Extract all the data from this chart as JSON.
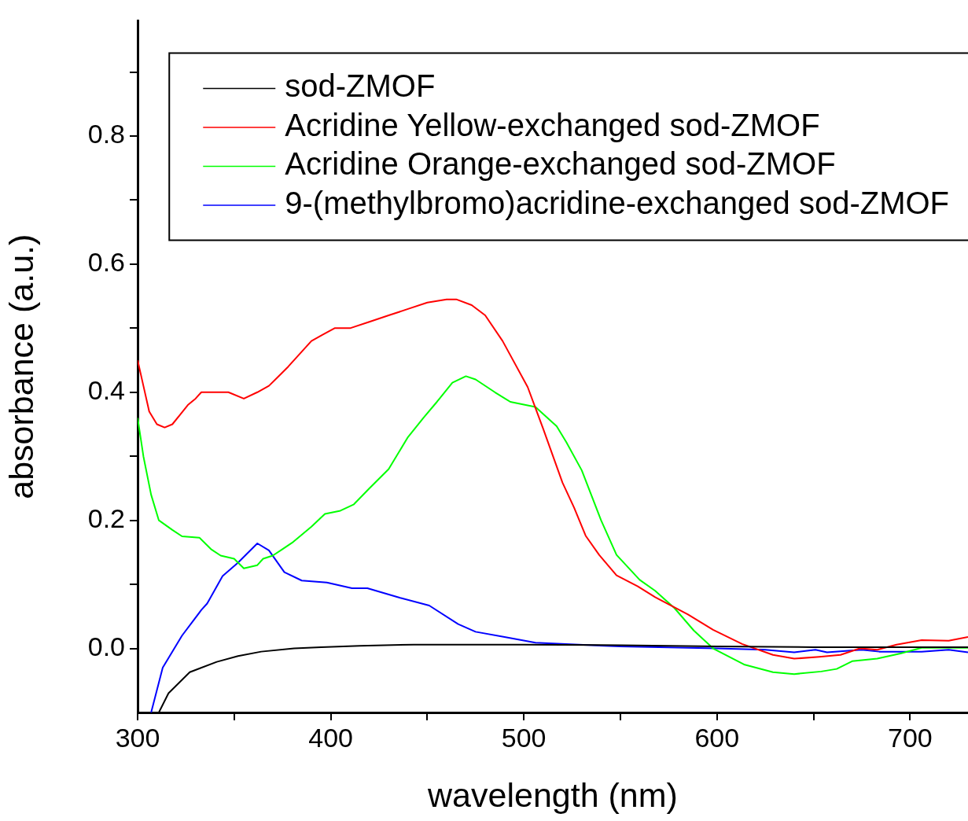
{
  "chart_data": {
    "type": "line",
    "xlabel": "wavelength (nm)",
    "ylabel": "absorbance (a.u.)",
    "xlim": [
      300,
      730
    ],
    "ylim": [
      -0.1,
      0.98
    ],
    "xticks": [
      300,
      {
        "value": 350,
        "label": null
      },
      400,
      {
        "value": 450,
        "label": null
      },
      500,
      {
        "value": 550,
        "label": null
      },
      600,
      {
        "value": 650,
        "label": null
      },
      700
    ],
    "yticks": [
      {
        "value": 0,
        "label": "0.0"
      },
      {
        "value": 0.1,
        "label": null
      },
      0.2,
      {
        "value": 0.3,
        "label": null
      },
      0.4,
      {
        "value": 0.5,
        "label": null
      },
      0.6,
      {
        "value": 0.7,
        "label": null
      },
      0.8,
      {
        "value": 0.9,
        "label": null
      }
    ],
    "grid": false,
    "legend": "top right",
    "marker": "none",
    "line_style": "solid",
    "series": [
      {
        "name": "sod-ZMOF",
        "color": "#000000",
        "x": [
          311,
          316,
          327,
          341,
          352,
          364,
          381,
          395,
          415,
          443,
          470,
          500,
          550,
          600,
          650,
          700,
          730
        ],
        "values": [
          -0.1,
          -0.07,
          -0.037,
          -0.021,
          -0.012,
          -0.005,
          0,
          0.002,
          0.004,
          0.006,
          0.006,
          0.006,
          0.005,
          0.003,
          0.002,
          0.002,
          0.002
        ]
      },
      {
        "name": "Acridine Yellow-exchanged sod-ZMOF",
        "color": "#ff0000",
        "x": [
          300,
          303,
          306,
          310,
          314,
          318,
          322,
          326,
          330,
          333,
          340,
          347,
          355,
          362,
          368,
          373,
          378,
          384,
          390,
          396,
          402,
          410,
          420,
          430,
          440,
          450,
          460,
          465,
          473,
          480,
          489,
          502,
          510,
          520,
          526,
          532,
          539,
          548,
          559,
          568,
          585,
          598,
          613,
          629,
          640,
          653,
          664,
          674,
          683,
          693,
          706,
          720,
          730
        ],
        "values": [
          0.45,
          0.41,
          0.37,
          0.35,
          0.345,
          0.35,
          0.365,
          0.38,
          0.39,
          0.4,
          0.4,
          0.4,
          0.39,
          0.4,
          0.41,
          0.425,
          0.44,
          0.46,
          0.48,
          0.49,
          0.5,
          0.5,
          0.51,
          0.52,
          0.53,
          0.54,
          0.545,
          0.545,
          0.536,
          0.52,
          0.48,
          0.408,
          0.343,
          0.259,
          0.22,
          0.176,
          0.146,
          0.114,
          0.097,
          0.08,
          0.053,
          0.029,
          0.007,
          -0.01,
          -0.016,
          -0.013,
          -0.01,
          0,
          -0.002,
          0.006,
          0.013,
          0.012,
          0.018
        ]
      },
      {
        "name": "Acridine Orange-exchanged sod-ZMOF",
        "color": "#00ff00",
        "x": [
          300,
          303,
          307,
          311,
          318,
          323,
          332,
          338,
          343,
          350,
          355,
          362,
          365,
          370,
          375,
          380,
          390,
          397,
          405,
          412,
          420,
          430,
          440,
          448,
          455,
          463,
          470,
          475,
          485,
          493,
          506,
          517,
          522,
          530,
          540,
          548,
          560,
          568,
          578,
          588,
          598,
          614,
          629,
          640,
          654,
          662,
          670,
          683,
          695,
          706,
          720,
          730
        ],
        "values": [
          0.36,
          0.3,
          0.24,
          0.2,
          0.185,
          0.175,
          0.173,
          0.155,
          0.145,
          0.14,
          0.125,
          0.13,
          0.14,
          0.145,
          0.155,
          0.165,
          0.19,
          0.21,
          0.215,
          0.225,
          0.25,
          0.28,
          0.33,
          0.36,
          0.385,
          0.415,
          0.425,
          0.42,
          0.4,
          0.385,
          0.377,
          0.347,
          0.322,
          0.278,
          0.2,
          0.146,
          0.107,
          0.09,
          0.063,
          0.028,
          0,
          -0.025,
          -0.037,
          -0.04,
          -0.036,
          -0.032,
          -0.02,
          -0.016,
          -0.008,
          0.001,
          0.001,
          0.001
        ]
      },
      {
        "name": "9-(methylbromo)acridine-exchanged sod-ZMOF",
        "color": "#0000ff",
        "x": [
          307,
          313,
          323,
          333,
          336,
          344,
          352,
          362,
          368,
          376,
          385,
          398,
          411,
          419,
          436,
          451,
          466,
          475,
          490,
          506,
          550,
          600,
          625,
          640,
          651,
          657,
          675,
          684,
          706,
          720,
          730
        ],
        "values": [
          -0.1,
          -0.03,
          0.02,
          0.06,
          0.07,
          0.113,
          0.134,
          0.164,
          0.153,
          0.119,
          0.106,
          0.103,
          0.094,
          0.094,
          0.079,
          0.067,
          0.038,
          0.026,
          0.018,
          0.009,
          0.003,
          0,
          -0.002,
          -0.006,
          -0.002,
          -0.006,
          -0.002,
          -0.005,
          -0.005,
          -0.002,
          -0.006
        ]
      }
    ]
  }
}
